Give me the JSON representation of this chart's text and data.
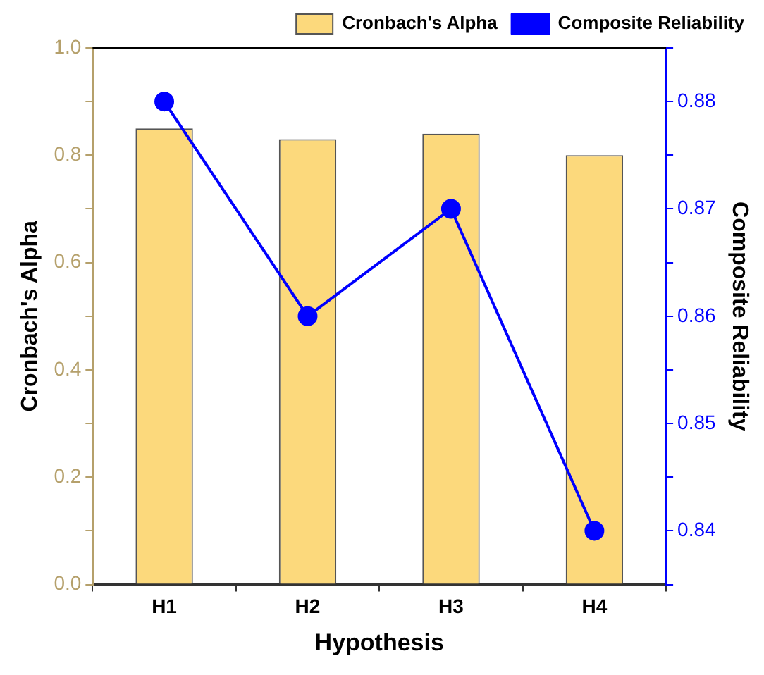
{
  "chart_data": {
    "type": "bar",
    "xlabel": "Hypothesis",
    "ylabel": "Cronbach's Alpha",
    "y2label": "Composite Reliability",
    "categories": [
      "H1",
      "H2",
      "H3",
      "H4"
    ],
    "series": [
      {
        "name": "Cronbach's Alpha",
        "color": "#fcd97c",
        "values": [
          0.85,
          0.83,
          0.84,
          0.8
        ]
      },
      {
        "name": "Composite Reliability",
        "type": "line",
        "axis": "y2",
        "color": "#0000ff",
        "values": [
          0.88,
          0.86,
          0.87,
          0.84
        ]
      }
    ],
    "ylim": [
      0,
      1.0
    ],
    "yticks": [
      {
        "value": 0,
        "label": "0.0"
      },
      {
        "value": 0.1,
        "label": null
      },
      {
        "value": 0.2,
        "label": "0.2"
      },
      {
        "value": 0.3,
        "label": null
      },
      {
        "value": 0.4,
        "label": "0.4"
      },
      {
        "value": 0.5,
        "label": null
      },
      {
        "value": 0.6,
        "label": "0.6"
      },
      {
        "value": 0.7,
        "label": null
      },
      {
        "value": 0.8,
        "label": "0.8"
      },
      {
        "value": 0.9,
        "label": null
      },
      {
        "value": 1.0,
        "label": "1.0"
      }
    ],
    "y2lim": [
      0.835,
      0.885
    ],
    "y2ticks": [
      {
        "value": 0.835,
        "label": null
      },
      0.84,
      {
        "value": 0.845,
        "label": null
      },
      0.85,
      {
        "value": 0.855,
        "label": null
      },
      0.86,
      {
        "value": 0.865,
        "label": null
      },
      0.87,
      {
        "value": 0.875,
        "label": null
      },
      0.88,
      {
        "value": 0.885,
        "label": null
      }
    ],
    "grid": false,
    "legend": "top right",
    "marker": "circle",
    "line_style": "solid"
  }
}
